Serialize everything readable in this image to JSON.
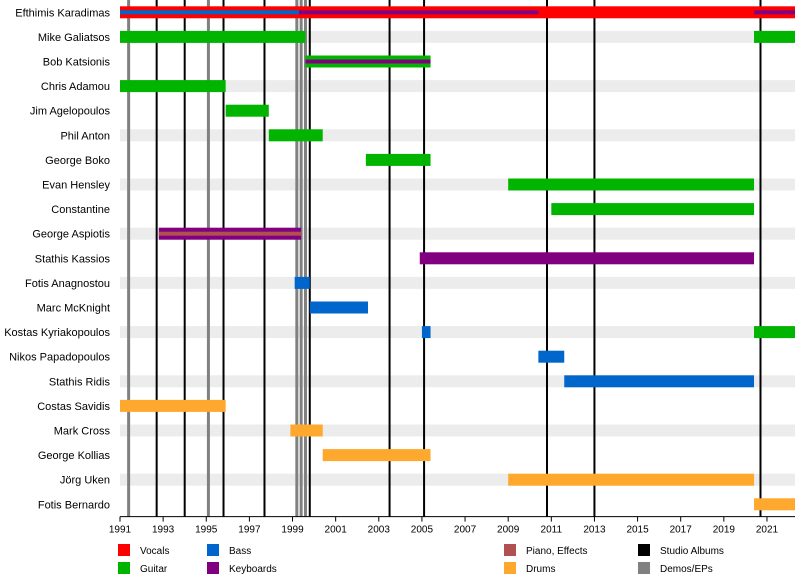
{
  "chart_data": {
    "type": "timeline",
    "title": "",
    "xlabel": "",
    "ylabel": "",
    "xlim": [
      1991,
      2022.3
    ],
    "x_ticks": [
      1991,
      1993,
      1995,
      1997,
      1999,
      2001,
      2003,
      2005,
      2007,
      2009,
      2011,
      2013,
      2015,
      2017,
      2019,
      2021
    ],
    "grid": "alternating row shading",
    "legend_placement": "bottom",
    "roles": {
      "vocals": {
        "label": "Vocals",
        "color": "#ff0000"
      },
      "guitar": {
        "label": "Guitar",
        "color": "#00b400"
      },
      "bass": {
        "label": "Bass",
        "color": "#0066cc"
      },
      "keyboards": {
        "label": "Keyboards",
        "color": "#800080"
      },
      "piano": {
        "label": "Piano, Effects",
        "color": "#b05050"
      },
      "drums": {
        "label": "Drums",
        "color": "#ffa82e"
      },
      "studio": {
        "label": "Studio Albums",
        "color": "#000000"
      },
      "demos": {
        "label": "Demos/EPs",
        "color": "#808080"
      }
    },
    "legend_order": [
      [
        "vocals",
        "bass",
        "piano",
        "studio"
      ],
      [
        "guitar",
        "keyboards",
        "drums",
        "demos"
      ]
    ],
    "studio_albums": [
      1992.7,
      1994.0,
      1995.8,
      1997.7,
      1999.8,
      2003.5,
      2005.1,
      2010.8,
      2013.0,
      2020.7
    ],
    "demos_eps": [
      1991.4,
      1995.1,
      1999.2,
      1999.4,
      1999.6
    ],
    "members": [
      {
        "name": "Efthimis Karadimas",
        "bars": [
          {
            "role": "vocals",
            "start": 1991.0,
            "end": 2022.3
          },
          {
            "role": "bass",
            "start": 1991.0,
            "end": 1999.3,
            "overlay": true
          },
          {
            "role": "keyboards",
            "start": 1999.3,
            "end": 2010.4,
            "overlay": true
          },
          {
            "role": "keyboards",
            "start": 2020.4,
            "end": 2022.3,
            "overlay": true
          }
        ]
      },
      {
        "name": "Mike Galiatsos",
        "bars": [
          {
            "role": "guitar",
            "start": 1991.0,
            "end": 1999.6
          },
          {
            "role": "guitar",
            "start": 2020.4,
            "end": 2022.3
          }
        ]
      },
      {
        "name": "Bob Katsionis",
        "bars": [
          {
            "role": "guitar",
            "start": 1999.6,
            "end": 2005.4
          },
          {
            "role": "keyboards",
            "start": 1999.6,
            "end": 2005.4,
            "overlay": true
          }
        ]
      },
      {
        "name": "Chris Adamou",
        "bars": [
          {
            "role": "guitar",
            "start": 1991.0,
            "end": 1995.9
          }
        ]
      },
      {
        "name": "Jim Agelopoulos",
        "bars": [
          {
            "role": "guitar",
            "start": 1995.9,
            "end": 1997.9
          }
        ]
      },
      {
        "name": "Phil Anton",
        "bars": [
          {
            "role": "guitar",
            "start": 1997.9,
            "end": 2000.4
          }
        ]
      },
      {
        "name": "George Boko",
        "bars": [
          {
            "role": "guitar",
            "start": 2002.4,
            "end": 2005.4
          }
        ]
      },
      {
        "name": "Evan Hensley",
        "bars": [
          {
            "role": "guitar",
            "start": 2009.0,
            "end": 2020.4
          }
        ]
      },
      {
        "name": "Constantine",
        "bars": [
          {
            "role": "guitar",
            "start": 2011.0,
            "end": 2020.4
          }
        ]
      },
      {
        "name": "George Aspiotis",
        "bars": [
          {
            "role": "keyboards",
            "start": 1992.8,
            "end": 1999.4
          },
          {
            "role": "piano",
            "start": 1992.8,
            "end": 1999.4,
            "overlay": true
          }
        ]
      },
      {
        "name": "Stathis Kassios",
        "bars": [
          {
            "role": "keyboards",
            "start": 2004.9,
            "end": 2020.4
          }
        ]
      },
      {
        "name": "Fotis Anagnostou",
        "bars": [
          {
            "role": "bass",
            "start": 1999.1,
            "end": 1999.8
          }
        ]
      },
      {
        "name": "Marc McKnight",
        "bars": [
          {
            "role": "bass",
            "start": 1999.8,
            "end": 2002.5
          }
        ]
      },
      {
        "name": "Kostas Kyriakopoulos",
        "bars": [
          {
            "role": "bass",
            "start": 2005.0,
            "end": 2005.4
          },
          {
            "role": "guitar",
            "start": 2020.4,
            "end": 2022.3
          }
        ]
      },
      {
        "name": "Nikos Papadopoulos",
        "bars": [
          {
            "role": "bass",
            "start": 2010.4,
            "end": 2011.6
          }
        ]
      },
      {
        "name": "Stathis Ridis",
        "bars": [
          {
            "role": "bass",
            "start": 2011.6,
            "end": 2020.4
          }
        ]
      },
      {
        "name": "Costas Savidis",
        "bars": [
          {
            "role": "drums",
            "start": 1991.0,
            "end": 1995.9
          }
        ]
      },
      {
        "name": "Mark Cross",
        "bars": [
          {
            "role": "drums",
            "start": 1998.9,
            "end": 2000.4
          }
        ]
      },
      {
        "name": "George Kollias",
        "bars": [
          {
            "role": "drums",
            "start": 2000.4,
            "end": 2005.4
          }
        ]
      },
      {
        "name": "Jörg Uken",
        "bars": [
          {
            "role": "drums",
            "start": 2009.0,
            "end": 2020.4
          }
        ]
      },
      {
        "name": "Fotis Bernardo",
        "bars": [
          {
            "role": "drums",
            "start": 2020.4,
            "end": 2022.3
          }
        ]
      }
    ]
  }
}
